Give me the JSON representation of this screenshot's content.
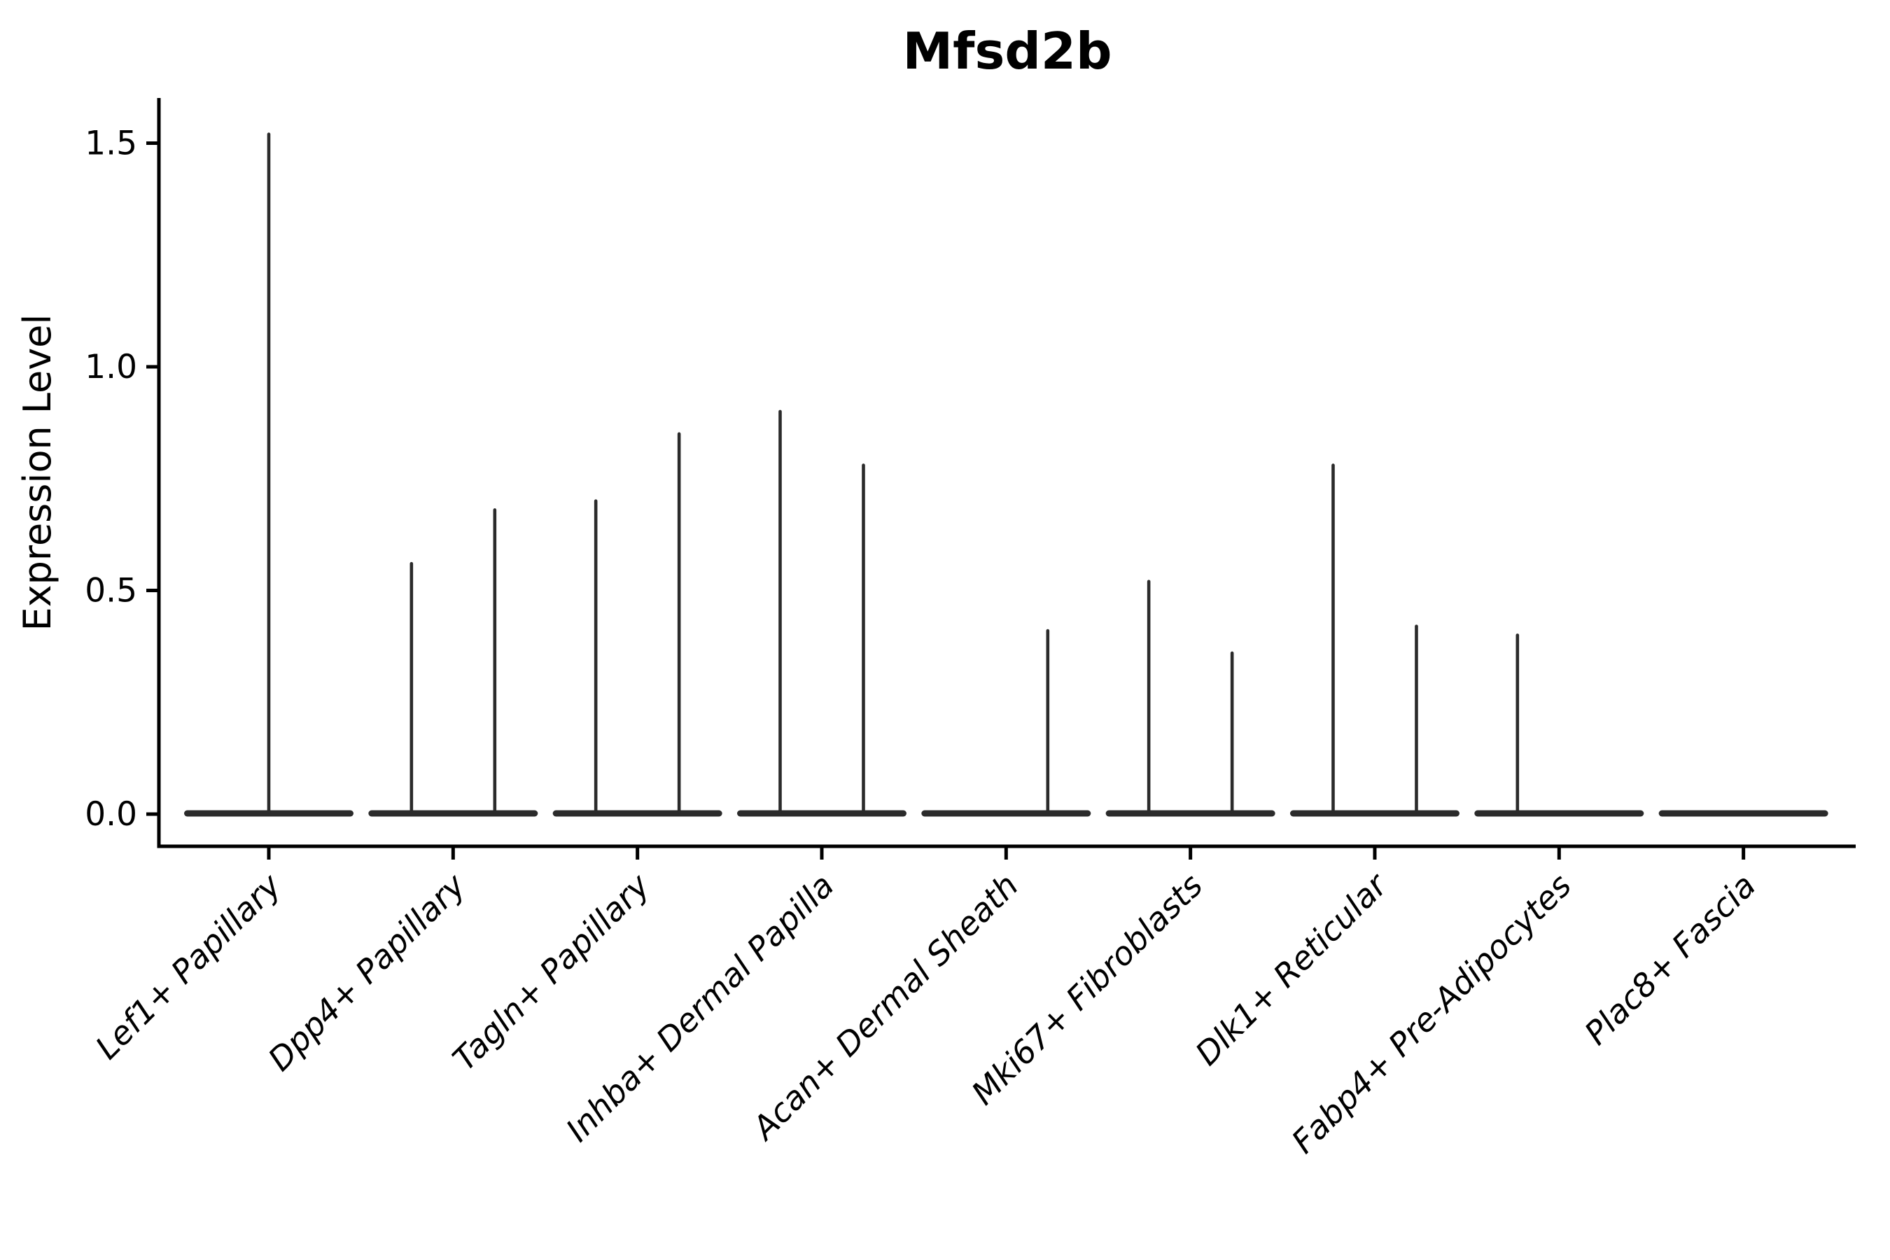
{
  "title": "Mfsd2b",
  "axes": {
    "y_label": "Expression Level",
    "y_tick_values": [
      0.0,
      0.5,
      1.0,
      1.5
    ],
    "y_tick_labels": [
      "0.0",
      "0.5",
      "1.0",
      "1.5"
    ],
    "x_tick_rotation_deg": 45
  },
  "colors": {
    "background": "#ffffff",
    "ink": "#000000",
    "violin": "#2b2b2b"
  },
  "chart_data": {
    "type": "violin",
    "title": "Mfsd2b",
    "xlabel": "",
    "ylabel": "Expression Level",
    "ylim": [
      0,
      1.55
    ],
    "grid": false,
    "legend": "none",
    "baseline_value": 0.0,
    "description": "Seurat-style violin plot of Mfsd2b expression across fibroblast clusters; each violin is a flat density pancake at 0 with thin spikes rising to the maximum expression of the few expressing cells (two sub-violins per cluster at left/right positions where present).",
    "categories": [
      "Lef1+ Papillary",
      "Dpp4+ Papillary",
      "Tagln+ Papillary",
      "Inhba+ Dermal Papilla",
      "Acan+ Dermal Sheath",
      "Mki67+ Fibroblasts",
      "Dlk1+ Reticular",
      "Fabp4+ Pre-Adipocytes",
      "Plac8+ Fascia"
    ],
    "violins": [
      {
        "category": "Lef1+ Papillary",
        "spikes": [
          {
            "pos": "center",
            "max": 1.52
          }
        ]
      },
      {
        "category": "Dpp4+ Papillary",
        "spikes": [
          {
            "pos": "left",
            "max": 0.56
          },
          {
            "pos": "right",
            "max": 0.68
          }
        ]
      },
      {
        "category": "Tagln+ Papillary",
        "spikes": [
          {
            "pos": "left",
            "max": 0.7
          },
          {
            "pos": "right",
            "max": 0.85
          }
        ]
      },
      {
        "category": "Inhba+ Dermal Papilla",
        "spikes": [
          {
            "pos": "left",
            "max": 0.9
          },
          {
            "pos": "right",
            "max": 0.78
          }
        ]
      },
      {
        "category": "Acan+ Dermal Sheath",
        "spikes": [
          {
            "pos": "right",
            "max": 0.41
          }
        ]
      },
      {
        "category": "Mki67+ Fibroblasts",
        "spikes": [
          {
            "pos": "left",
            "max": 0.52
          },
          {
            "pos": "right",
            "max": 0.36
          }
        ]
      },
      {
        "category": "Dlk1+ Reticular",
        "spikes": [
          {
            "pos": "left",
            "max": 0.78
          },
          {
            "pos": "right",
            "max": 0.42
          }
        ]
      },
      {
        "category": "Fabp4+ Pre-Adipocytes",
        "spikes": [
          {
            "pos": "left",
            "max": 0.4
          }
        ]
      },
      {
        "category": "Plac8+ Fascia",
        "spikes": []
      }
    ]
  }
}
